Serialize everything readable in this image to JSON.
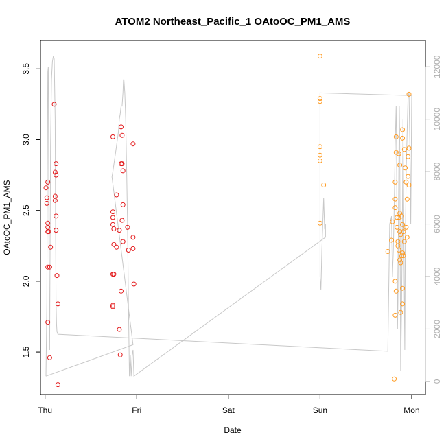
{
  "chart_data": {
    "type": "scatter",
    "title": "ATOM2 Northeast_Pacific_1 OAtoOC_PM1_AMS",
    "xlabel": "Date",
    "ylabel": "OAtoOC_PM1_AMS",
    "x_ticks": [
      "Thu",
      "Fri",
      "Sat",
      "Sun",
      "Mon"
    ],
    "y_ticks": [
      "1.5",
      "2.0",
      "2.5",
      "3.0",
      "3.5"
    ],
    "y2_ticks": [
      "0",
      "2000",
      "4000",
      "6000",
      "8000",
      "10000",
      "12000"
    ],
    "xlim": [
      -0.05,
      4.15
    ],
    "ylim": [
      1.2,
      3.7
    ],
    "y2lim": [
      -500,
      13000
    ],
    "grid": false,
    "colors": {
      "red": "#e31a1c",
      "orange": "#ff9a1f",
      "altitude": "#c8c8c8",
      "axis_right": "#b0b0b0"
    },
    "series": [
      {
        "color": "red",
        "points": [
          [
            0.01,
            2.66
          ],
          [
            0.02,
            2.59
          ],
          [
            0.02,
            2.55
          ],
          [
            0.03,
            2.41
          ],
          [
            0.03,
            2.38
          ],
          [
            0.03,
            2.35
          ],
          [
            0.04,
            2.35
          ],
          [
            0.03,
            2.1
          ],
          [
            0.05,
            2.1
          ],
          [
            0.03,
            1.71
          ],
          [
            0.05,
            1.46
          ],
          [
            0.06,
            2.24
          ],
          [
            0.03,
            2.7
          ],
          [
            0.1,
            3.25
          ],
          [
            0.11,
            2.77
          ],
          [
            0.12,
            2.83
          ],
          [
            0.11,
            2.6
          ],
          [
            0.11,
            2.57
          ],
          [
            0.12,
            2.75
          ],
          [
            0.12,
            2.46
          ],
          [
            0.12,
            2.36
          ],
          [
            0.13,
            2.04
          ],
          [
            0.14,
            1.84
          ],
          [
            0.14,
            1.27
          ],
          [
            0.74,
            3.02
          ],
          [
            0.74,
            2.49
          ],
          [
            0.74,
            2.45
          ],
          [
            0.74,
            2.4
          ],
          [
            0.75,
            2.37
          ],
          [
            0.75,
            2.26
          ],
          [
            0.74,
            2.05
          ],
          [
            0.75,
            2.05
          ],
          [
            0.74,
            1.83
          ],
          [
            0.74,
            1.82
          ],
          [
            0.78,
            2.61
          ],
          [
            0.78,
            2.24
          ],
          [
            0.81,
            2.36
          ],
          [
            0.81,
            1.66
          ],
          [
            0.82,
            1.48
          ],
          [
            0.83,
            3.09
          ],
          [
            0.83,
            2.83
          ],
          [
            0.84,
            2.83
          ],
          [
            0.84,
            2.43
          ],
          [
            0.83,
            1.93
          ],
          [
            0.84,
            3.03
          ],
          [
            0.85,
            2.78
          ],
          [
            0.85,
            2.54
          ],
          [
            0.85,
            2.28
          ],
          [
            0.9,
            2.38
          ],
          [
            0.91,
            2.22
          ],
          [
            0.96,
            2.97
          ],
          [
            0.96,
            2.23
          ],
          [
            0.96,
            2.31
          ],
          [
            0.97,
            1.98
          ]
        ]
      },
      {
        "color": "orange",
        "points": [
          [
            3.0,
            3.59
          ],
          [
            3.0,
            3.29
          ],
          [
            3.0,
            3.27
          ],
          [
            3.0,
            2.95
          ],
          [
            3.0,
            2.89
          ],
          [
            3.0,
            2.85
          ],
          [
            3.0,
            2.41
          ],
          [
            3.04,
            2.68
          ],
          [
            3.74,
            2.21
          ],
          [
            3.78,
            2.29
          ],
          [
            3.79,
            2.42
          ],
          [
            3.82,
            2.52
          ],
          [
            3.82,
            2.58
          ],
          [
            3.82,
            2.7
          ],
          [
            3.82,
            2.0
          ],
          [
            3.83,
            1.93
          ],
          [
            3.82,
            1.76
          ],
          [
            3.81,
            1.31
          ],
          [
            3.83,
            3.02
          ],
          [
            3.83,
            2.91
          ],
          [
            3.84,
            2.45
          ],
          [
            3.84,
            2.38
          ],
          [
            3.85,
            2.28
          ],
          [
            3.85,
            2.25
          ],
          [
            3.86,
            2.9
          ],
          [
            3.86,
            2.45
          ],
          [
            3.86,
            2.22
          ],
          [
            3.87,
            2.82
          ],
          [
            3.87,
            2.48
          ],
          [
            3.87,
            2.35
          ],
          [
            3.87,
            2.15
          ],
          [
            3.88,
            2.13
          ],
          [
            3.88,
            2.33
          ],
          [
            3.88,
            1.78
          ],
          [
            3.89,
            2.18
          ],
          [
            3.89,
            2.46
          ],
          [
            3.9,
            3.01
          ],
          [
            3.9,
            3.07
          ],
          [
            3.9,
            2.4
          ],
          [
            3.9,
            2.2
          ],
          [
            3.9,
            1.95
          ],
          [
            3.9,
            1.84
          ],
          [
            3.91,
            2.18
          ],
          [
            3.91,
            2.35
          ],
          [
            3.92,
            2.28
          ],
          [
            3.92,
            2.93
          ],
          [
            3.93,
            2.8
          ],
          [
            3.94,
            2.7
          ],
          [
            3.94,
            2.38
          ],
          [
            3.95,
            2.31
          ],
          [
            3.95,
            2.58
          ],
          [
            3.96,
            2.74
          ],
          [
            3.96,
            2.88
          ],
          [
            3.97,
            2.68
          ],
          [
            3.97,
            3.32
          ],
          [
            3.97,
            2.94
          ]
        ]
      }
    ],
    "y2_series": {
      "name": "",
      "color": "altitude",
      "points": [
        [
          0.01,
          200
        ],
        [
          0.02,
          3000
        ],
        [
          0.025,
          8000
        ],
        [
          0.03,
          11800
        ],
        [
          0.035,
          12000
        ],
        [
          0.04,
          8000
        ],
        [
          0.045,
          3000
        ],
        [
          0.05,
          1200
        ],
        [
          0.055,
          5000
        ],
        [
          0.06,
          9000
        ],
        [
          0.07,
          11500
        ],
        [
          0.08,
          12200
        ],
        [
          0.09,
          12400
        ],
        [
          0.1,
          12300
        ],
        [
          0.11,
          10000
        ],
        [
          0.115,
          6000
        ],
        [
          0.12,
          3000
        ],
        [
          0.125,
          2200
        ],
        [
          0.13,
          1900
        ],
        [
          0.14,
          1800
        ],
        [
          3.74,
          1150
        ],
        [
          3.76,
          6000
        ],
        [
          3.78,
          6300
        ],
        [
          3.79,
          4000
        ],
        [
          3.8,
          5000
        ],
        [
          3.81,
          6800
        ],
        [
          3.82,
          9000
        ],
        [
          3.83,
          10500
        ],
        [
          3.835,
          9000
        ],
        [
          3.84,
          5000
        ],
        [
          3.845,
          2000
        ],
        [
          3.85,
          3000
        ],
        [
          3.855,
          6000
        ],
        [
          3.86,
          8500
        ],
        [
          3.865,
          10500
        ],
        [
          3.87,
          9000
        ],
        [
          3.875,
          4000
        ],
        [
          3.88,
          400
        ],
        [
          3.89,
          3000
        ],
        [
          3.9,
          7000
        ],
        [
          3.905,
          10000
        ],
        [
          3.91,
          8000
        ],
        [
          3.92,
          3000
        ],
        [
          3.925,
          1200
        ],
        [
          3.93,
          5000
        ],
        [
          3.94,
          8000
        ],
        [
          3.95,
          9500
        ],
        [
          3.96,
          10800
        ],
        [
          3.97,
          11000
        ],
        [
          3.98,
          9000
        ],
        [
          3.99,
          6000
        ],
        [
          4.0,
          10900
        ],
        [
          3.0,
          11000
        ],
        [
          3.0,
          7500
        ],
        [
          3.0,
          4000
        ],
        [
          3.01,
          3500
        ],
        [
          3.02,
          5000
        ],
        [
          3.03,
          6000
        ],
        [
          3.04,
          7000
        ],
        [
          3.05,
          5800
        ],
        [
          3.06,
          6000
        ],
        [
          3.06,
          5500
        ],
        [
          0.97,
          200
        ],
        [
          0.96,
          1200
        ],
        [
          0.95,
          1000
        ],
        [
          0.94,
          200
        ],
        [
          0.93,
          1000
        ],
        [
          0.92,
          200
        ],
        [
          0.91,
          3000
        ],
        [
          0.9,
          6000
        ],
        [
          0.89,
          8000
        ],
        [
          0.88,
          10000
        ],
        [
          0.87,
          11000
        ],
        [
          0.86,
          11500
        ],
        [
          0.855,
          11500
        ],
        [
          0.85,
          11000
        ],
        [
          0.84,
          10500
        ],
        [
          0.83,
          10500
        ],
        [
          0.82,
          10200
        ],
        [
          0.81,
          10000
        ],
        [
          0.8,
          9500
        ],
        [
          0.78,
          9000
        ],
        [
          0.76,
          8500
        ],
        [
          0.74,
          8000
        ],
        [
          0.73,
          7800
        ],
        [
          0.96,
          1400
        ],
        [
          0.01,
          200
        ]
      ]
    }
  }
}
